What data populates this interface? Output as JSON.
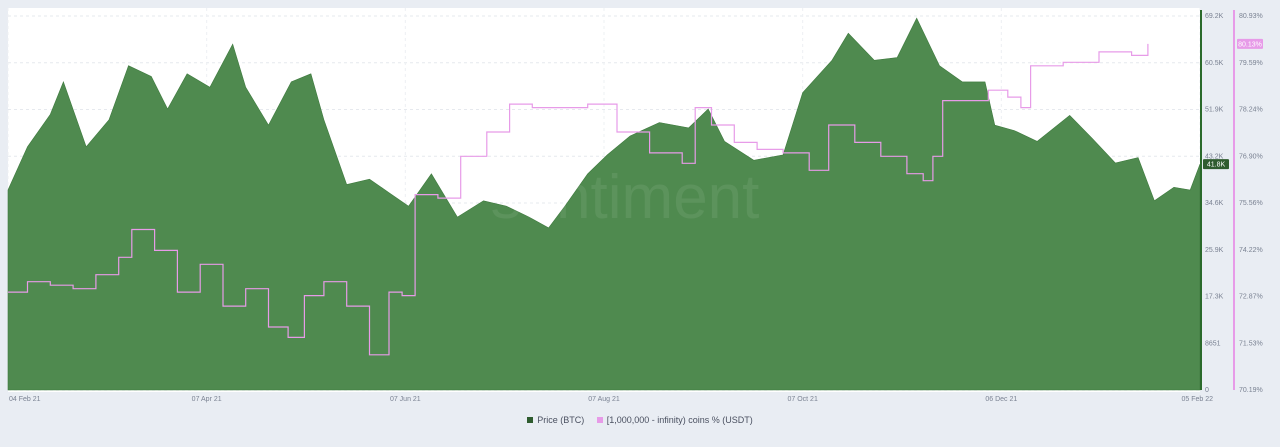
{
  "chart_data": {
    "type": "area",
    "watermark": "santiment",
    "grid": true,
    "legend_placement": "bottom-center",
    "x_ticks": [
      "04 Feb 21",
      "07 Apr 21",
      "07 Jun 21",
      "07 Aug 21",
      "07 Oct 21",
      "06 Dec 21",
      "05 Feb 22"
    ],
    "y_left": {
      "ticks": [
        "0",
        "8651",
        "17.3K",
        "25.9K",
        "34.6K",
        "43.2K",
        "51.9K",
        "60.5K",
        "69.2K"
      ],
      "ylim": [
        0,
        69200
      ],
      "axis_color": "#2b6a2b"
    },
    "y_right": {
      "ticks": [
        "70.19%",
        "71.53%",
        "72.87%",
        "74.22%",
        "75.56%",
        "76.90%",
        "78.24%",
        "79.59%",
        "80.93%"
      ],
      "ylim": [
        70.19,
        80.93
      ],
      "axis_color": "#e79be8"
    },
    "series": [
      {
        "name": "Price (BTC)",
        "axis": "left",
        "color": "#4f8a4f",
        "legend_color": "#2f5c2f",
        "last_value_label": "41.8K",
        "points": [
          [
            "2021-02-04",
            37000
          ],
          [
            "2021-02-10",
            45000
          ],
          [
            "2021-02-17",
            51000
          ],
          [
            "2021-02-21",
            57000
          ],
          [
            "2021-02-28",
            45000
          ],
          [
            "2021-03-07",
            50000
          ],
          [
            "2021-03-13",
            60000
          ],
          [
            "2021-03-20",
            58000
          ],
          [
            "2021-03-25",
            52000
          ],
          [
            "2021-03-31",
            58500
          ],
          [
            "2021-04-07",
            56000
          ],
          [
            "2021-04-14",
            64000
          ],
          [
            "2021-04-18",
            56000
          ],
          [
            "2021-04-25",
            49000
          ],
          [
            "2021-05-02",
            57000
          ],
          [
            "2021-05-08",
            58500
          ],
          [
            "2021-05-12",
            50000
          ],
          [
            "2021-05-19",
            38000
          ],
          [
            "2021-05-26",
            39000
          ],
          [
            "2021-06-01",
            36500
          ],
          [
            "2021-06-07",
            34000
          ],
          [
            "2021-06-14",
            40000
          ],
          [
            "2021-06-22",
            32000
          ],
          [
            "2021-06-30",
            35000
          ],
          [
            "2021-07-07",
            34000
          ],
          [
            "2021-07-14",
            32000
          ],
          [
            "2021-07-20",
            30000
          ],
          [
            "2021-07-25",
            34000
          ],
          [
            "2021-08-01",
            40000
          ],
          [
            "2021-08-07",
            43500
          ],
          [
            "2021-08-14",
            47000
          ],
          [
            "2021-08-23",
            49500
          ],
          [
            "2021-09-01",
            48500
          ],
          [
            "2021-09-07",
            52000
          ],
          [
            "2021-09-12",
            46000
          ],
          [
            "2021-09-21",
            42500
          ],
          [
            "2021-09-30",
            43500
          ],
          [
            "2021-10-06",
            55000
          ],
          [
            "2021-10-15",
            61000
          ],
          [
            "2021-10-20",
            66000
          ],
          [
            "2021-10-28",
            61000
          ],
          [
            "2021-11-04",
            61500
          ],
          [
            "2021-11-10",
            68800
          ],
          [
            "2021-11-17",
            60000
          ],
          [
            "2021-11-24",
            57000
          ],
          [
            "2021-12-01",
            57000
          ],
          [
            "2021-12-04",
            49000
          ],
          [
            "2021-12-10",
            48000
          ],
          [
            "2021-12-17",
            46000
          ],
          [
            "2021-12-27",
            50800
          ],
          [
            "2022-01-03",
            46500
          ],
          [
            "2022-01-10",
            42000
          ],
          [
            "2022-01-17",
            43000
          ],
          [
            "2022-01-22",
            35000
          ],
          [
            "2022-01-28",
            37500
          ],
          [
            "2022-02-02",
            37000
          ],
          [
            "2022-02-05",
            41800
          ]
        ]
      },
      {
        "name": "[1,000,000 - infinity) coins % (USDT)",
        "axis": "right",
        "color": "#e79be8",
        "last_value_label": "80.13%",
        "points": [
          [
            "2021-02-04",
            73.0
          ],
          [
            "2021-02-10",
            73.3
          ],
          [
            "2021-02-17",
            73.2
          ],
          [
            "2021-02-24",
            73.1
          ],
          [
            "2021-03-03",
            73.5
          ],
          [
            "2021-03-10",
            74.0
          ],
          [
            "2021-03-14",
            74.8
          ],
          [
            "2021-03-21",
            74.2
          ],
          [
            "2021-03-28",
            73.0
          ],
          [
            "2021-04-04",
            73.8
          ],
          [
            "2021-04-11",
            72.6
          ],
          [
            "2021-04-18",
            73.1
          ],
          [
            "2021-04-25",
            72.0
          ],
          [
            "2021-05-01",
            71.7
          ],
          [
            "2021-05-06",
            72.9
          ],
          [
            "2021-05-12",
            73.3
          ],
          [
            "2021-05-19",
            72.6
          ],
          [
            "2021-05-26",
            71.2
          ],
          [
            "2021-06-01",
            73.0
          ],
          [
            "2021-06-05",
            72.9
          ],
          [
            "2021-06-09",
            75.8
          ],
          [
            "2021-06-16",
            75.7
          ],
          [
            "2021-06-23",
            76.9
          ],
          [
            "2021-07-01",
            77.6
          ],
          [
            "2021-07-08",
            78.4
          ],
          [
            "2021-07-15",
            78.3
          ],
          [
            "2021-07-22",
            78.3
          ],
          [
            "2021-08-01",
            78.4
          ],
          [
            "2021-08-10",
            77.6
          ],
          [
            "2021-08-20",
            77.0
          ],
          [
            "2021-08-30",
            76.7
          ],
          [
            "2021-09-03",
            78.3
          ],
          [
            "2021-09-08",
            77.8
          ],
          [
            "2021-09-15",
            77.3
          ],
          [
            "2021-09-22",
            77.1
          ],
          [
            "2021-09-30",
            77.0
          ],
          [
            "2021-10-08",
            76.5
          ],
          [
            "2021-10-14",
            77.8
          ],
          [
            "2021-10-22",
            77.3
          ],
          [
            "2021-10-30",
            76.9
          ],
          [
            "2021-11-07",
            76.4
          ],
          [
            "2021-11-12",
            76.2
          ],
          [
            "2021-11-15",
            76.9
          ],
          [
            "2021-11-18",
            78.5
          ],
          [
            "2021-11-25",
            78.5
          ],
          [
            "2021-12-02",
            78.8
          ],
          [
            "2021-12-08",
            78.6
          ],
          [
            "2021-12-12",
            78.3
          ],
          [
            "2021-12-15",
            79.5
          ],
          [
            "2021-12-25",
            79.6
          ],
          [
            "2022-01-05",
            79.9
          ],
          [
            "2022-01-15",
            79.8
          ],
          [
            "2022-01-20",
            80.13
          ]
        ]
      }
    ]
  }
}
